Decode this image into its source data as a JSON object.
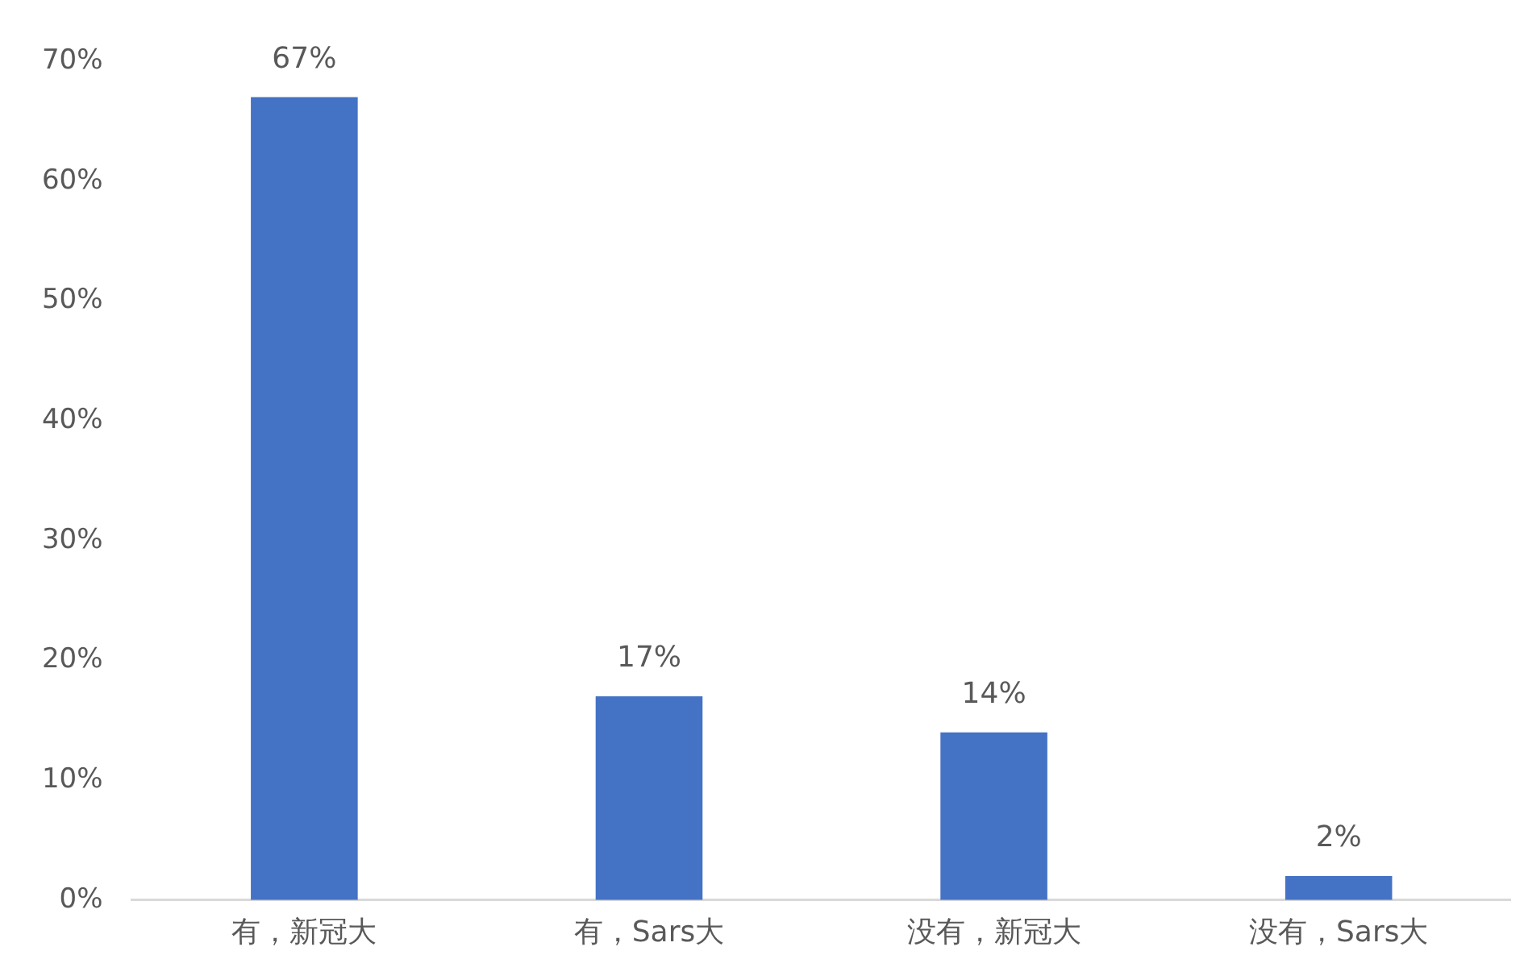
{
  "chart_data": {
    "type": "bar",
    "categories": [
      "有，新冠大",
      "有，Sars大",
      "没有，新冠大",
      "没有，Sars大"
    ],
    "values": [
      67,
      17,
      14,
      2
    ],
    "color": "#4472c4",
    "value_labels": [
      "67%",
      "17%",
      "14%",
      "2%"
    ],
    "ylim": [
      0,
      70
    ],
    "yticks": [
      {
        "value": 0,
        "label": "0%"
      },
      {
        "value": 10,
        "label": "10%"
      },
      {
        "value": 20,
        "label": "20%"
      },
      {
        "value": 30,
        "label": "30%"
      },
      {
        "value": 40,
        "label": "40%"
      },
      {
        "value": 50,
        "label": "50%"
      },
      {
        "value": 60,
        "label": "60%"
      },
      {
        "value": 70,
        "label": "70%"
      }
    ],
    "grid": false,
    "legend": false
  }
}
